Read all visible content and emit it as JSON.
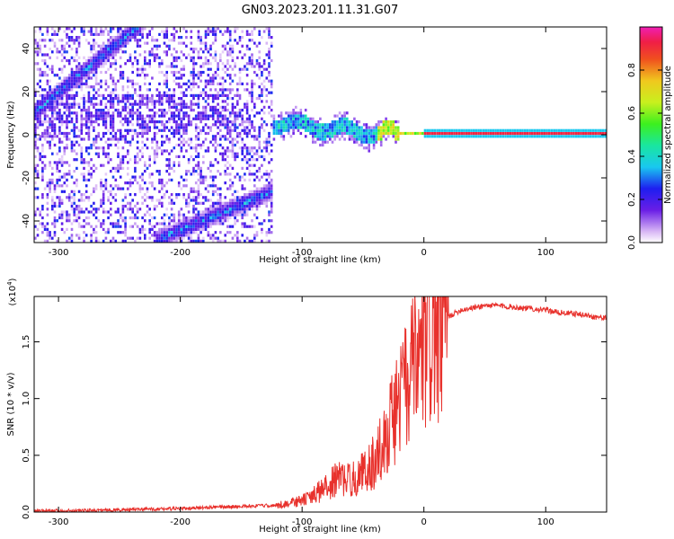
{
  "figure": {
    "title": "GN03.2023.201.11.31.G07"
  },
  "chart_data": [
    {
      "type": "heatmap",
      "title": "GN03.2023.201.11.31.G07",
      "xlabel": "Height of straight line (km)",
      "ylabel": "Frequency (Hz)",
      "xlim": [
        -320,
        150
      ],
      "ylim": [
        -50,
        50
      ],
      "xticks": [
        -300,
        -200,
        -100,
        0,
        100
      ],
      "yticks": [
        -40,
        -20,
        0,
        20,
        40
      ],
      "colorbar": {
        "label": "Normalized spectral amplitude",
        "range": [
          0.0,
          1.0
        ],
        "ticks": [
          0.0,
          0.2,
          0.4,
          0.6,
          0.8
        ]
      },
      "features": [
        {
          "name": "upper diagonal band",
          "from": [
            -320,
            10
          ],
          "to": [
            -235,
            50
          ]
        },
        {
          "name": "lower diagonal band",
          "from": [
            -210,
            -47
          ],
          "to": [
            -125,
            -27
          ]
        },
        {
          "name": "zero-frequency track",
          "from": [
            -125,
            5
          ],
          "to": [
            150,
            0
          ]
        }
      ]
    },
    {
      "type": "line",
      "xlabel": "Height of straight line (km)",
      "ylabel": "SNR (10 * v/v)",
      "y_multiplier": "(x10^4)",
      "xlim": [
        -320,
        150
      ],
      "ylim": [
        0,
        1.9
      ],
      "xticks": [
        -300,
        -200,
        -100,
        0,
        100
      ],
      "yticks": [
        0.0,
        0.5,
        1.0,
        1.5
      ],
      "series": [
        {
          "color": "#e8312c",
          "x": [
            -320,
            -300,
            -250,
            -200,
            -150,
            -120,
            -110,
            -100,
            -90,
            -80,
            -70,
            -60,
            -50,
            -40,
            -30,
            -20,
            -10,
            -5,
            0,
            5,
            10,
            20,
            30,
            40,
            50,
            60,
            70,
            80,
            90,
            100,
            110,
            120,
            130,
            140,
            150
          ],
          "values": [
            0.01,
            0.01,
            0.02,
            0.03,
            0.05,
            0.06,
            0.08,
            0.1,
            0.15,
            0.22,
            0.3,
            0.28,
            0.35,
            0.45,
            0.7,
            1.0,
            1.2,
            1.3,
            1.4,
            1.5,
            1.6,
            1.72,
            1.78,
            1.8,
            1.82,
            1.82,
            1.81,
            1.8,
            1.79,
            1.78,
            1.76,
            1.75,
            1.74,
            1.72,
            1.71
          ]
        }
      ]
    }
  ]
}
